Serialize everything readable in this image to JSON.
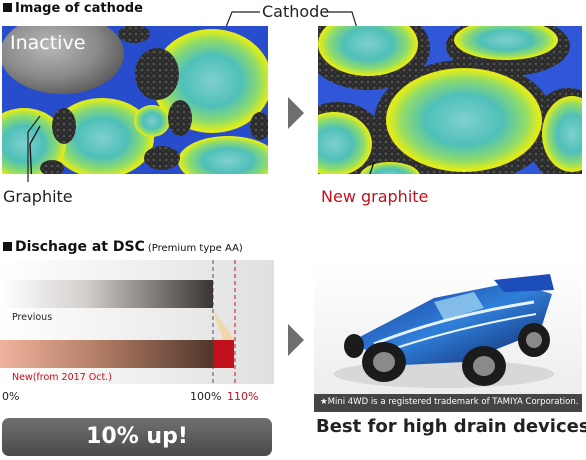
{
  "cathode_section": {
    "title": "Image of cathode",
    "cathode_label": "Cathode",
    "inactive_label": "Inactive",
    "graphite_label": "Graphite",
    "new_graphite_label": "New graphite"
  },
  "discharge_section": {
    "title": "Dischage at DSC",
    "subtitle": "(Premium type AA)",
    "previous_label": "Previous",
    "new_label": "New(from 2017 Oct.)",
    "tick_0": "0%",
    "tick_100": "100%",
    "tick_110": "110%",
    "up_banner": "10% up!"
  },
  "chart_data": {
    "type": "bar",
    "categories": [
      "Previous",
      "New(from 2017 Oct.)"
    ],
    "values": [
      100,
      110
    ],
    "xticks": [
      "0%",
      "100%",
      "110%"
    ]
  },
  "product": {
    "trademark_note": "★Mini 4WD is a registered trademark of TAMIYA Corporation.",
    "headline": "Best for high drain devices"
  },
  "colors": {
    "red_accent": "#c0101c",
    "arrow_gray": "#6e6e6e",
    "electrolyte_blue": "#2d56d8",
    "particle_yellow": "#e8ee10",
    "particle_teal": "#5cc8c0"
  }
}
